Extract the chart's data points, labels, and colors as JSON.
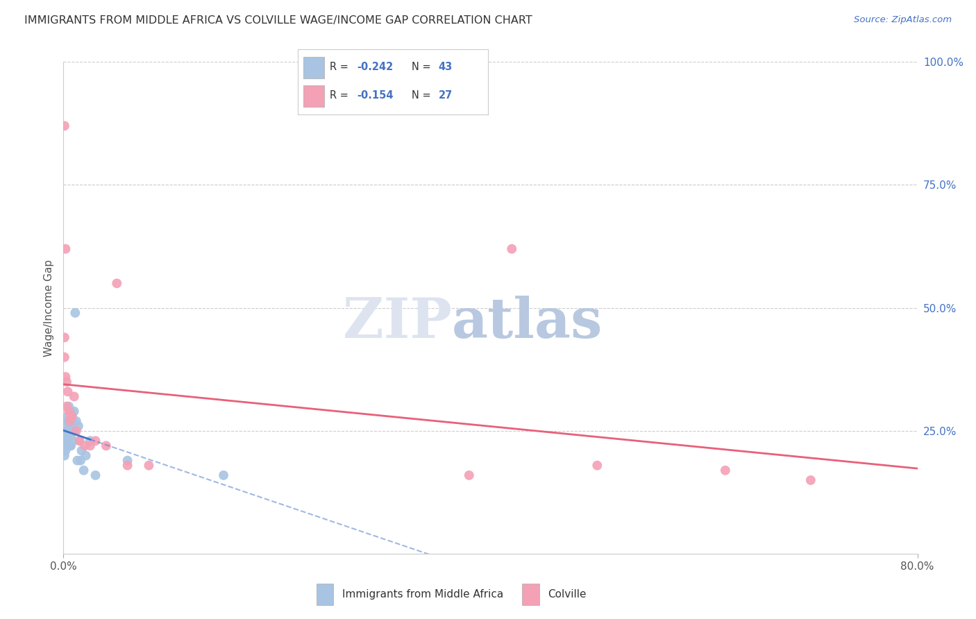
{
  "title": "IMMIGRANTS FROM MIDDLE AFRICA VS COLVILLE WAGE/INCOME GAP CORRELATION CHART",
  "source": "Source: ZipAtlas.com",
  "ylabel": "Wage/Income Gap",
  "xlim": [
    0.0,
    0.8
  ],
  "ylim": [
    0.0,
    1.0
  ],
  "ytick_positions": [
    0.0,
    0.25,
    0.5,
    0.75,
    1.0
  ],
  "right_ytick_labels": [
    "",
    "25.0%",
    "50.0%",
    "75.0%",
    "100.0%"
  ],
  "blue_R": -0.242,
  "blue_N": 43,
  "pink_R": -0.154,
  "pink_N": 27,
  "blue_color": "#a8c4e2",
  "pink_color": "#f4a0b5",
  "blue_line_color": "#4472c4",
  "pink_line_color": "#e8607a",
  "blue_scatter_x": [
    0.001,
    0.001,
    0.002,
    0.002,
    0.002,
    0.003,
    0.003,
    0.003,
    0.003,
    0.004,
    0.004,
    0.004,
    0.004,
    0.005,
    0.005,
    0.005,
    0.005,
    0.006,
    0.006,
    0.006,
    0.007,
    0.007,
    0.007,
    0.007,
    0.008,
    0.008,
    0.009,
    0.009,
    0.01,
    0.01,
    0.011,
    0.012,
    0.013,
    0.014,
    0.015,
    0.016,
    0.017,
    0.019,
    0.021,
    0.025,
    0.03,
    0.06,
    0.15
  ],
  "blue_scatter_y": [
    0.22,
    0.2,
    0.25,
    0.23,
    0.21,
    0.27,
    0.25,
    0.23,
    0.22,
    0.28,
    0.26,
    0.24,
    0.22,
    0.3,
    0.27,
    0.25,
    0.22,
    0.27,
    0.25,
    0.22,
    0.29,
    0.26,
    0.24,
    0.22,
    0.28,
    0.25,
    0.27,
    0.23,
    0.29,
    0.25,
    0.49,
    0.27,
    0.19,
    0.26,
    0.23,
    0.19,
    0.21,
    0.17,
    0.2,
    0.23,
    0.16,
    0.19,
    0.16
  ],
  "pink_scatter_x": [
    0.001,
    0.001,
    0.001,
    0.002,
    0.002,
    0.003,
    0.003,
    0.004,
    0.005,
    0.006,
    0.007,
    0.008,
    0.01,
    0.012,
    0.015,
    0.02,
    0.025,
    0.03,
    0.04,
    0.05,
    0.06,
    0.08,
    0.38,
    0.42,
    0.5,
    0.62,
    0.7
  ],
  "pink_scatter_y": [
    0.44,
    0.4,
    0.87,
    0.62,
    0.36,
    0.35,
    0.3,
    0.33,
    0.29,
    0.27,
    0.28,
    0.28,
    0.32,
    0.25,
    0.23,
    0.22,
    0.22,
    0.23,
    0.22,
    0.55,
    0.18,
    0.18,
    0.16,
    0.62,
    0.18,
    0.17,
    0.15
  ],
  "blue_trend_x0": 0.0,
  "blue_trend_x1": 0.025,
  "blue_trend_dash_x1": 0.52,
  "pink_trend_x0": 0.0,
  "pink_trend_x1": 0.8
}
